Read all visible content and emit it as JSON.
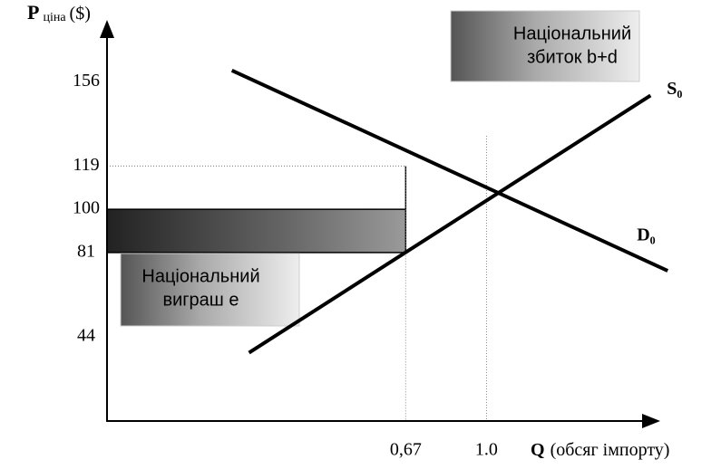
{
  "chart_data": {
    "type": "line",
    "y_label": {
      "symbol": "P",
      "text": "ціна",
      "unit": "($)"
    },
    "x_label": {
      "symbol": "Q",
      "text": "(обсяг імпорту)"
    },
    "xlim": [
      -0.55,
      1.68
    ],
    "ylim": [
      7,
      180
    ],
    "xticks": [
      {
        "value": 0.67,
        "label": "0,67"
      },
      {
        "value": 1,
        "label": "1.0"
      }
    ],
    "yticks": [
      156,
      119,
      100,
      81,
      44
    ],
    "series": [
      {
        "name": "S₀",
        "color": "#000000",
        "x": [
          0.03,
          1.67
        ],
        "values": [
          37,
          150
        ]
      },
      {
        "name": "D₀",
        "color": "#000000",
        "x": [
          -0.04,
          1.74
        ],
        "values": [
          161,
          73
        ]
      }
    ],
    "annotations": [
      {
        "lines": [
          "Національний",
          "збиток b+d"
        ]
      },
      {
        "lines": [
          "Національний",
          "виграш  e"
        ]
      }
    ]
  }
}
